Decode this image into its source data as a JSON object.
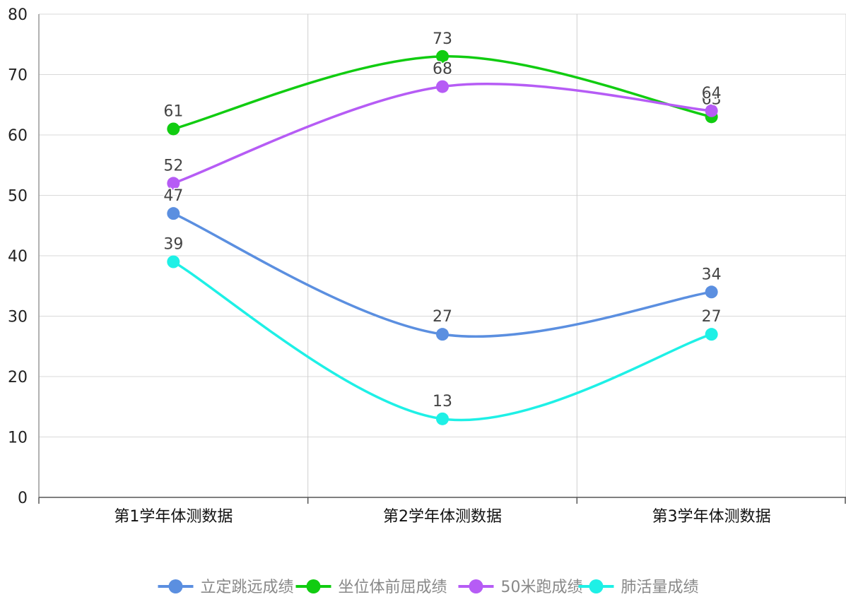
{
  "chart_data": {
    "type": "line",
    "categories": [
      "第1学年体测数据",
      "第2学年体测数据",
      "第3学年体测数据"
    ],
    "ylim": [
      0,
      80
    ],
    "yticks": [
      0,
      10,
      20,
      30,
      40,
      50,
      60,
      70,
      80
    ],
    "grid": true,
    "smooth": true,
    "legend_position": "bottom",
    "series": [
      {
        "name": "立定跳远成绩",
        "values": [
          47,
          27,
          34
        ],
        "color": "#5b8fe0"
      },
      {
        "name": "坐位体前屈成绩",
        "values": [
          61,
          73,
          63
        ],
        "color": "#11cc11"
      },
      {
        "name": "50米跑成绩",
        "values": [
          52,
          68,
          64
        ],
        "color": "#b65cf5"
      },
      {
        "name": "肺活量成绩",
        "values": [
          39,
          13,
          27
        ],
        "color": "#1ef0e6"
      }
    ]
  }
}
